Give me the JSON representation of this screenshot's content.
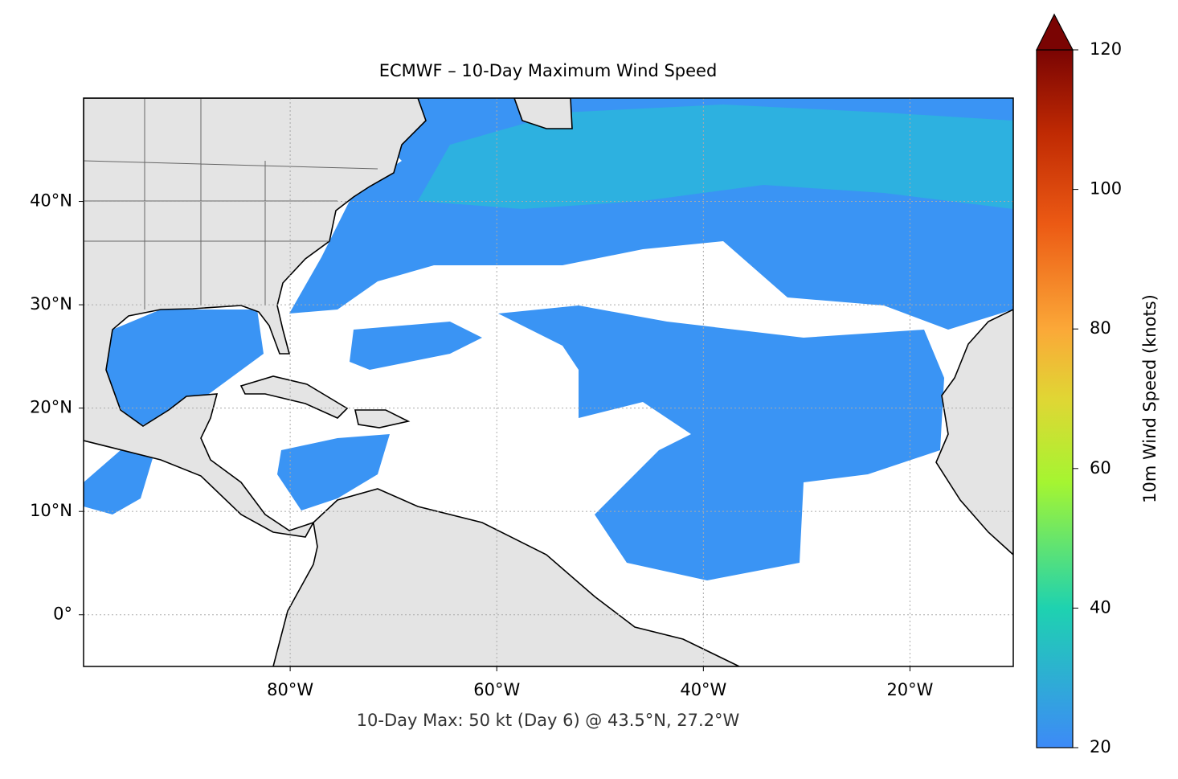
{
  "chart_data": {
    "type": "map",
    "title": "ECMWF – 10-Day Maximum Wind Speed",
    "annotation": "10-Day Max: 50 kt (Day 6) @ 43.5°N, 27.2°W",
    "xlim": [
      -100,
      -10
    ],
    "ylim": [
      -5,
      50
    ],
    "xticks": [
      {
        "value": -80,
        "label": "80°W"
      },
      {
        "value": -60,
        "label": "60°W"
      },
      {
        "value": -40,
        "label": "40°W"
      },
      {
        "value": -20,
        "label": "20°W"
      }
    ],
    "yticks": [
      {
        "value": 0,
        "label": "0°"
      },
      {
        "value": 10,
        "label": "10°N"
      },
      {
        "value": 20,
        "label": "20°N"
      },
      {
        "value": 30,
        "label": "30°N"
      },
      {
        "value": 40,
        "label": "40°N"
      }
    ],
    "grid": true,
    "colorbar": {
      "label": "10m Wind Speed (knots)",
      "lim": [
        20,
        120
      ],
      "ticks": [
        20,
        40,
        60,
        80,
        100,
        120
      ]
    }
  }
}
